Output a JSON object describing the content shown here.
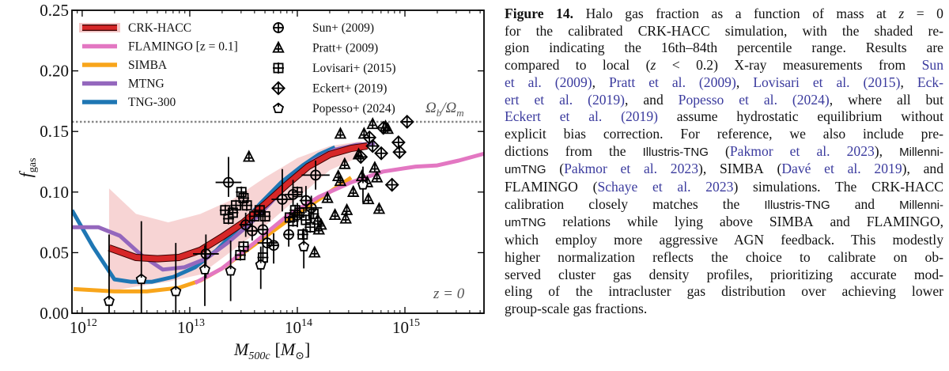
{
  "chart_data": {
    "type": "scatter",
    "title": "",
    "xlabel": "M_500c [M_sun]",
    "xlabel_main": "M",
    "xlabel_sub": "500c",
    "xlabel_unit_open": "[",
    "xlabel_unit": "M",
    "xlabel_unit_sub": "⊙",
    "xlabel_unit_close": "]",
    "ylabel": "f_gas",
    "ylabel_main": "f",
    "ylabel_sub": "gas",
    "xscale": "log",
    "xlim_log10": [
      11.905,
      15.735
    ],
    "ylim": [
      0.0,
      0.25
    ],
    "x_ticks": [
      {
        "base": "10",
        "exp": "12",
        "log10": 12
      },
      {
        "base": "10",
        "exp": "13",
        "log10": 13
      },
      {
        "base": "10",
        "exp": "14",
        "log10": 14
      },
      {
        "base": "10",
        "exp": "15",
        "log10": 15
      }
    ],
    "y_ticks": [
      {
        "label": "0.00",
        "value": 0.0
      },
      {
        "label": "0.05",
        "value": 0.05
      },
      {
        "label": "0.10",
        "value": 0.1
      },
      {
        "label": "0.15",
        "value": 0.15
      },
      {
        "label": "0.20",
        "value": 0.2
      },
      {
        "label": "0.25",
        "value": 0.25
      }
    ],
    "grid": false,
    "baryon_fraction": {
      "value": 0.158,
      "label_main": "Ω",
      "label_sub_b": "b",
      "label_slash": "/",
      "label_main2": "Ω",
      "label_sub_m": "m"
    },
    "redshift_annotation": "z = 0",
    "legend_models_position": "top-left",
    "legend_obs_position": "top-center",
    "shaded_band": {
      "name": "CRK-HACC 16th–84th percentile",
      "color": "#f4c6c6",
      "x_log10": [
        12.25,
        12.5,
        12.8,
        13.1,
        13.4,
        13.7,
        14.0,
        14.3,
        14.6
      ],
      "lower": [
        0.018,
        0.022,
        0.026,
        0.032,
        0.052,
        0.072,
        0.095,
        0.118,
        0.13
      ],
      "upper": [
        0.103,
        0.082,
        0.075,
        0.082,
        0.094,
        0.112,
        0.128,
        0.138,
        0.142
      ]
    },
    "series": [
      {
        "name": "CRK-HACC",
        "color": "#d62728",
        "outline": "#3a0000",
        "width": 7,
        "x_log10": [
          12.25,
          12.5,
          12.7,
          12.9,
          13.1,
          13.3,
          13.5,
          13.7,
          13.9,
          14.1,
          14.3,
          14.5,
          14.65
        ],
        "y": [
          0.054,
          0.046,
          0.045,
          0.046,
          0.052,
          0.063,
          0.075,
          0.09,
          0.106,
          0.121,
          0.131,
          0.136,
          0.138
        ]
      },
      {
        "name": "FLAMINGO [z = 0.1]",
        "color": "#e377c2",
        "width": 5,
        "x_log10": [
          13.05,
          13.3,
          13.6,
          13.9,
          14.2,
          14.5,
          14.8,
          15.1,
          15.3,
          15.5,
          15.75
        ],
        "y": [
          0.025,
          0.037,
          0.058,
          0.08,
          0.096,
          0.108,
          0.117,
          0.121,
          0.122,
          0.126,
          0.132
        ]
      },
      {
        "name": "SIMBA",
        "color": "#f8a51b",
        "width": 5,
        "x_log10": [
          11.92,
          12.3,
          12.6,
          12.9,
          13.1,
          13.3,
          13.5,
          13.7,
          13.9,
          14.1,
          14.3,
          14.5
        ],
        "y": [
          0.02,
          0.018,
          0.018,
          0.021,
          0.027,
          0.037,
          0.05,
          0.063,
          0.076,
          0.088,
          0.1,
          0.112
        ]
      },
      {
        "name": "MTNG",
        "color": "#9467bd",
        "width": 5,
        "x_log10": [
          11.905,
          12.15,
          12.35,
          12.55,
          12.75,
          12.95,
          13.15,
          13.35,
          13.55,
          13.75,
          13.95,
          14.15,
          14.35,
          14.55,
          14.72
        ],
        "y": [
          0.071,
          0.071,
          0.064,
          0.048,
          0.036,
          0.038,
          0.045,
          0.058,
          0.073,
          0.091,
          0.11,
          0.126,
          0.135,
          0.139,
          0.14
        ]
      },
      {
        "name": "TNG-300",
        "color": "#1f77b4",
        "width": 5,
        "x_log10": [
          11.905,
          12.1,
          12.3,
          12.45,
          12.65,
          12.85,
          13.05,
          13.25,
          13.45,
          13.65,
          13.85,
          14.05,
          14.2,
          14.35
        ],
        "y": [
          0.085,
          0.055,
          0.028,
          0.026,
          0.026,
          0.03,
          0.038,
          0.052,
          0.07,
          0.09,
          0.108,
          0.122,
          0.131,
          0.137
        ]
      }
    ],
    "observations": [
      {
        "name": "Sun+ (2009)",
        "marker": "circle-plus",
        "points": [
          {
            "x_log10": 13.15,
            "y": 0.049,
            "xerr": 0.12,
            "yerr_lo": 0.02,
            "yerr_hi": 0.016
          },
          {
            "x_log10": 13.36,
            "y": 0.108,
            "xerr": 0.12,
            "yerr_lo": 0.012,
            "yerr_hi": 0.021
          },
          {
            "x_log10": 13.52,
            "y": 0.073,
            "xerr": 0.06,
            "yerr_lo": 0.01,
            "yerr_hi": 0.01
          },
          {
            "x_log10": 13.58,
            "y": 0.068,
            "xerr": 0.06,
            "yerr_lo": 0.008,
            "yerr_hi": 0.01
          },
          {
            "x_log10": 13.68,
            "y": 0.069,
            "xerr": 0.05,
            "yerr_lo": 0.02,
            "yerr_hi": 0.015
          },
          {
            "x_log10": 13.72,
            "y": 0.058,
            "xerr": 0.09,
            "yerr_lo": 0.015,
            "yerr_hi": 0.01
          },
          {
            "x_log10": 13.78,
            "y": 0.056,
            "xerr": 0.05,
            "yerr_lo": 0.015,
            "yerr_hi": 0.01
          },
          {
            "x_log10": 13.86,
            "y": 0.094,
            "xerr": 0.1,
            "yerr_lo": 0.01,
            "yerr_hi": 0.025
          },
          {
            "x_log10": 13.92,
            "y": 0.065,
            "xerr": 0.05,
            "yerr_lo": 0.01,
            "yerr_hi": 0.01
          },
          {
            "x_log10": 13.96,
            "y": 0.098,
            "xerr": 0.08,
            "yerr_lo": 0.01,
            "yerr_hi": 0.012
          },
          {
            "x_log10": 14.0,
            "y": 0.081,
            "xerr": 0.06,
            "yerr_lo": 0.01,
            "yerr_hi": 0.01
          },
          {
            "x_log10": 14.08,
            "y": 0.093,
            "xerr": 0.06,
            "yerr_lo": 0.01,
            "yerr_hi": 0.012
          },
          {
            "x_log10": 14.13,
            "y": 0.087,
            "xerr": 0.1,
            "yerr_lo": 0.012,
            "yerr_hi": 0.01
          },
          {
            "x_log10": 14.17,
            "y": 0.114,
            "xerr": 0.13,
            "yerr_lo": 0.012,
            "yerr_hi": 0.012
          }
        ]
      },
      {
        "name": "Pratt+ (2009)",
        "marker": "triangle-plus",
        "points": [
          {
            "x_log10": 14.16,
            "y": 0.05
          },
          {
            "x_log10": 14.2,
            "y": 0.069
          },
          {
            "x_log10": 14.22,
            "y": 0.073
          },
          {
            "x_log10": 14.19,
            "y": 0.077
          },
          {
            "x_log10": 14.28,
            "y": 0.095
          },
          {
            "x_log10": 14.35,
            "y": 0.081
          },
          {
            "x_log10": 14.38,
            "y": 0.113
          },
          {
            "x_log10": 14.4,
            "y": 0.109
          },
          {
            "x_log10": 14.4,
            "y": 0.148
          },
          {
            "x_log10": 14.44,
            "y": 0.123
          },
          {
            "x_log10": 14.45,
            "y": 0.078
          },
          {
            "x_log10": 14.46,
            "y": 0.085
          },
          {
            "x_log10": 14.52,
            "y": 0.1
          },
          {
            "x_log10": 14.57,
            "y": 0.131
          },
          {
            "x_log10": 14.6,
            "y": 0.113
          },
          {
            "x_log10": 14.62,
            "y": 0.148
          },
          {
            "x_log10": 14.65,
            "y": 0.108
          },
          {
            "x_log10": 14.66,
            "y": 0.094
          },
          {
            "x_log10": 14.7,
            "y": 0.156
          },
          {
            "x_log10": 14.72,
            "y": 0.12
          },
          {
            "x_log10": 14.74,
            "y": 0.112
          },
          {
            "x_log10": 14.76,
            "y": 0.086
          },
          {
            "x_log10": 14.82,
            "y": 0.154
          },
          {
            "x_log10": 14.84,
            "y": 0.152
          },
          {
            "x_log10": 13.55,
            "y": 0.129
          }
        ]
      },
      {
        "name": "Lovisari+ (2015)",
        "marker": "square-plus",
        "points": [
          {
            "x_log10": 13.33,
            "y": 0.085
          },
          {
            "x_log10": 13.36,
            "y": 0.078
          },
          {
            "x_log10": 13.4,
            "y": 0.083
          },
          {
            "x_log10": 13.43,
            "y": 0.089
          },
          {
            "x_log10": 13.48,
            "y": 0.1
          },
          {
            "x_log10": 13.5,
            "y": 0.095
          },
          {
            "x_log10": 13.53,
            "y": 0.089
          },
          {
            "x_log10": 13.47,
            "y": 0.048
          },
          {
            "x_log10": 13.5,
            "y": 0.055
          },
          {
            "x_log10": 13.6,
            "y": 0.08
          },
          {
            "x_log10": 13.65,
            "y": 0.085
          },
          {
            "x_log10": 13.68,
            "y": 0.046
          },
          {
            "x_log10": 13.7,
            "y": 0.08
          },
          {
            "x_log10": 13.93,
            "y": 0.079
          },
          {
            "x_log10": 13.96,
            "y": 0.076
          },
          {
            "x_log10": 13.98,
            "y": 0.085
          },
          {
            "x_log10": 14.0,
            "y": 0.1
          },
          {
            "x_log10": 14.02,
            "y": 0.083
          },
          {
            "x_log10": 14.05,
            "y": 0.065
          },
          {
            "x_log10": 14.08,
            "y": 0.077
          },
          {
            "x_log10": 14.12,
            "y": 0.071
          },
          {
            "x_log10": 14.15,
            "y": 0.082
          }
        ]
      },
      {
        "name": "Eckert+ (2019)",
        "marker": "diamond-plus",
        "points": [
          {
            "x_log10": 14.59,
            "y": 0.129
          },
          {
            "x_log10": 14.67,
            "y": 0.145
          },
          {
            "x_log10": 14.7,
            "y": 0.138
          },
          {
            "x_log10": 14.78,
            "y": 0.132
          },
          {
            "x_log10": 14.8,
            "y": 0.153
          },
          {
            "x_log10": 14.88,
            "y": 0.106
          },
          {
            "x_log10": 14.94,
            "y": 0.141
          },
          {
            "x_log10": 14.95,
            "y": 0.133
          },
          {
            "x_log10": 15.02,
            "y": 0.158
          }
        ]
      },
      {
        "name": "Popesso+ (2024)",
        "marker": "pentagon",
        "points": [
          {
            "x_log10": 12.25,
            "y": 0.01,
            "yerr_lo": 0.01,
            "yerr_hi": 0.055
          },
          {
            "x_log10": 12.55,
            "y": 0.028,
            "yerr_lo": 0.028,
            "yerr_hi": 0.048
          },
          {
            "x_log10": 12.87,
            "y": 0.018,
            "yerr_lo": 0.018,
            "yerr_hi": 0.04
          },
          {
            "x_log10": 13.14,
            "y": 0.036,
            "yerr_lo": 0.03,
            "yerr_hi": 0.02
          },
          {
            "x_log10": 13.38,
            "y": 0.035,
            "yerr_lo": 0.025,
            "yerr_hi": 0.025
          },
          {
            "x_log10": 13.66,
            "y": 0.04,
            "yerr_lo": 0.02,
            "yerr_hi": 0.015
          },
          {
            "x_log10": 14.06,
            "y": 0.055,
            "yerr_lo": 0.018,
            "yerr_hi": 0.015
          },
          {
            "x_log10": 14.61,
            "y": 0.106,
            "yerr_lo": 0.015,
            "yerr_hi": 0.015
          }
        ]
      }
    ]
  },
  "legend": {
    "models": [
      {
        "label": "CRK-HACC",
        "color": "#d62728"
      },
      {
        "label": "FLAMINGO [z = 0.1]",
        "color": "#e377c2"
      },
      {
        "label": "SIMBA",
        "color": "#f8a51b"
      },
      {
        "label": "MTNG",
        "color": "#9467bd"
      },
      {
        "label": "TNG-300",
        "color": "#1f77b4"
      }
    ],
    "observations": [
      {
        "label": "Sun+ (2009)",
        "marker": "circle-plus"
      },
      {
        "label": "Pratt+ (2009)",
        "marker": "triangle-plus"
      },
      {
        "label": "Lovisari+ (2015)",
        "marker": "square-plus"
      },
      {
        "label": "Eckert+ (2019)",
        "marker": "diamond-plus"
      },
      {
        "label": "Popesso+ (2024)",
        "marker": "pentagon"
      }
    ]
  },
  "caption": {
    "figure_label": "Figure 14.",
    "lines": [
      [
        {
          "t": "Halo gas fraction as a function of mass at "
        },
        {
          "t": "z",
          "i": true
        },
        {
          "t": " = 0"
        }
      ],
      [
        {
          "t": "for the calibrated "
        },
        {
          "t": "CRK-HACC",
          "sc": true
        },
        {
          "t": " simulation, with the shaded re-"
        }
      ],
      [
        {
          "t": "gion indicating the 16th–84th percentile range.  Results are"
        }
      ],
      [
        {
          "t": "compared to local ("
        },
        {
          "t": "z",
          "i": true
        },
        {
          "t": " < 0.2) X-ray measurements from "
        },
        {
          "t": "Sun",
          "c": true
        }
      ],
      [
        {
          "t": "et al. (2009)",
          "c": true
        },
        {
          "t": ", "
        },
        {
          "t": "Pratt et al. (2009)",
          "c": true
        },
        {
          "t": ", "
        },
        {
          "t": "Lovisari et al. (2015)",
          "c": true
        },
        {
          "t": ", "
        },
        {
          "t": "Eck-",
          "c": true
        }
      ],
      [
        {
          "t": "ert et al. (2019)",
          "c": true
        },
        {
          "t": ", and "
        },
        {
          "t": "Popesso et al. (2024)",
          "c": true
        },
        {
          "t": ", where all but"
        }
      ],
      [
        {
          "t": "Eckert et al. (2019)",
          "c": true
        },
        {
          "t": " assume hydrostatic equilibrium without"
        }
      ],
      [
        {
          "t": "explicit bias correction.  For reference, we also include pre-"
        }
      ],
      [
        {
          "t": "dictions from the "
        },
        {
          "t": "Illustris-TNG",
          "sf": true
        },
        {
          "t": " ("
        },
        {
          "t": "Pakmor et al. 2023",
          "c": true
        },
        {
          "t": "), "
        },
        {
          "t": "Millenni-",
          "sf": true
        }
      ],
      [
        {
          "t": "umTNG",
          "sf": true
        },
        {
          "t": " ("
        },
        {
          "t": "Pakmor et al. 2023",
          "c": true
        },
        {
          "t": "), "
        },
        {
          "t": "SIMBA",
          "sc": true
        },
        {
          "t": " ("
        },
        {
          "t": "Davé et al. 2019",
          "c": true
        },
        {
          "t": "), and"
        }
      ],
      [
        {
          "t": "FLAMINGO",
          "sc": true
        },
        {
          "t": " ("
        },
        {
          "t": "Schaye et al. 2023",
          "c": true
        },
        {
          "t": ") simulations.  The "
        },
        {
          "t": "CRK-HACC",
          "sc": true
        }
      ],
      [
        {
          "t": "calibration  closely  matches  the  "
        },
        {
          "t": "Illustris-TNG",
          "sf": true
        },
        {
          "t": "  and  "
        },
        {
          "t": "Millenni-",
          "sf": true
        }
      ],
      [
        {
          "t": "umTNG",
          "sf": true
        },
        {
          "t": " relations while lying above "
        },
        {
          "t": "SIMBA",
          "sc": true
        },
        {
          "t": " and "
        },
        {
          "t": "FLAMINGO",
          "sc": true
        },
        {
          "t": ","
        }
      ],
      [
        {
          "t": "which employ more aggressive AGN feedback.  This modestly"
        }
      ],
      [
        {
          "t": "higher normalization reflects the choice to calibrate on ob-"
        }
      ],
      [
        {
          "t": "served cluster gas density profiles, prioritizing accurate mod-"
        }
      ],
      [
        {
          "t": "eling of the intracluster gas distribution over achieving lower"
        }
      ],
      [
        {
          "t": "group-scale gas fractions."
        }
      ]
    ]
  }
}
